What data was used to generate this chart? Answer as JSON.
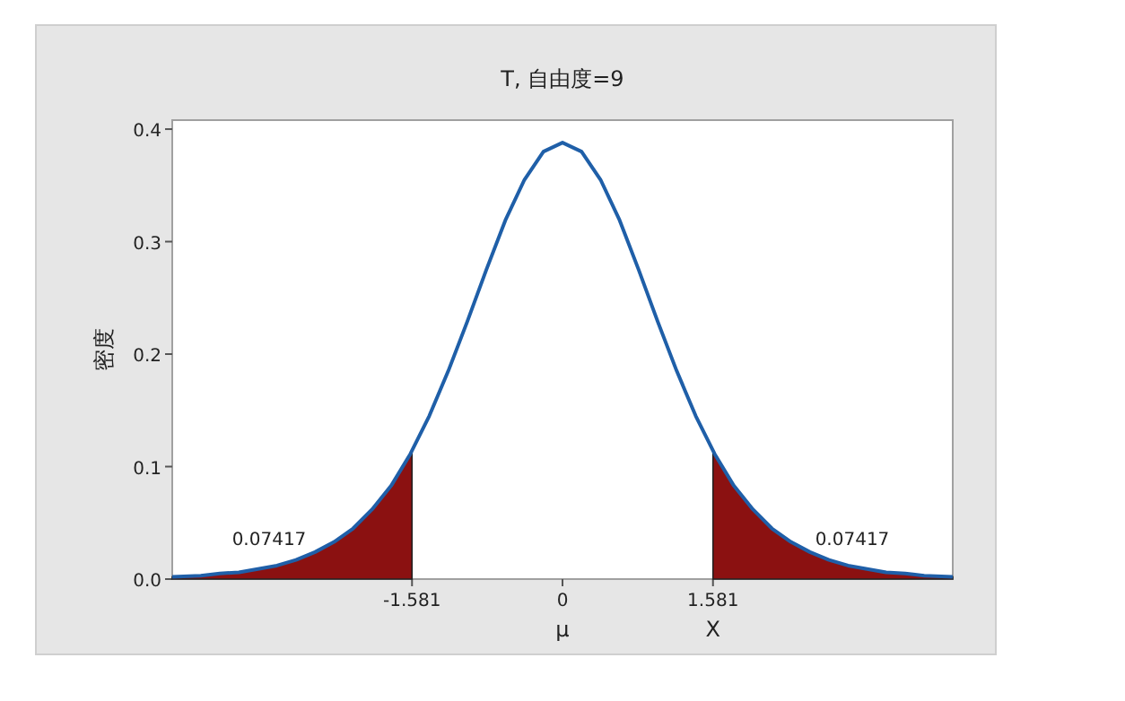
{
  "chart_data": {
    "type": "line",
    "title": "T, 自由度=9",
    "ylabel": "密度",
    "xlim": [
      -4.1,
      4.1
    ],
    "ylim": [
      0,
      0.408
    ],
    "xticks": [
      -1.581,
      0,
      1.581
    ],
    "yticks": [
      {
        "value": 0,
        "label": "0.0"
      },
      {
        "value": 0.1,
        "label": "0.1"
      },
      {
        "value": 0.2,
        "label": "0.2"
      },
      {
        "value": 0.3,
        "label": "0.3"
      },
      {
        "value": 0.4,
        "label": "0.4"
      }
    ],
    "grid": false,
    "series": [
      {
        "type": "area",
        "color": "#8b1111",
        "x": [
          -4.1,
          -3.8,
          -3.6,
          -3.4,
          -3.2,
          -3.0,
          -2.8,
          -2.6,
          -2.4,
          -2.2,
          -2.0,
          -1.8,
          -1.6,
          -1.581
        ],
        "values": [
          0.002,
          0.003,
          0.005,
          0.006,
          0.009,
          0.012,
          0.017,
          0.024,
          0.033,
          0.045,
          0.062,
          0.083,
          0.111,
          0.114
        ]
      },
      {
        "type": "area",
        "color": "#8b1111",
        "x": [
          1.581,
          1.6,
          1.8,
          2.0,
          2.2,
          2.4,
          2.6,
          2.8,
          3.0,
          3.2,
          3.4,
          3.6,
          3.8,
          4.1
        ],
        "values": [
          0.114,
          0.111,
          0.083,
          0.062,
          0.045,
          0.033,
          0.024,
          0.017,
          0.012,
          0.009,
          0.006,
          0.005,
          0.003,
          0.002
        ]
      },
      {
        "color": "#1f5fa8",
        "x": [
          -4.1,
          -3.8,
          -3.6,
          -3.4,
          -3.2,
          -3.0,
          -2.8,
          -2.6,
          -2.4,
          -2.2,
          -2.0,
          -1.8,
          -1.6,
          -1.4,
          -1.2,
          -1.0,
          -0.8,
          -0.6,
          -0.4,
          -0.2,
          0,
          0.2,
          0.4,
          0.6,
          0.8,
          1.0,
          1.2,
          1.4,
          1.6,
          1.8,
          2.0,
          2.2,
          2.4,
          2.6,
          2.8,
          3.0,
          3.2,
          3.4,
          3.6,
          3.8,
          4.1
        ],
        "values": [
          0.002,
          0.003,
          0.005,
          0.006,
          0.009,
          0.012,
          0.017,
          0.024,
          0.033,
          0.045,
          0.062,
          0.083,
          0.111,
          0.145,
          0.185,
          0.229,
          0.275,
          0.319,
          0.355,
          0.38,
          0.388,
          0.38,
          0.355,
          0.319,
          0.275,
          0.229,
          0.185,
          0.145,
          0.111,
          0.083,
          0.062,
          0.045,
          0.033,
          0.024,
          0.017,
          0.012,
          0.009,
          0.006,
          0.005,
          0.003,
          0.002
        ]
      }
    ],
    "annotations": [
      "0.07417",
      "0.07417",
      "μ",
      "X"
    ]
  }
}
